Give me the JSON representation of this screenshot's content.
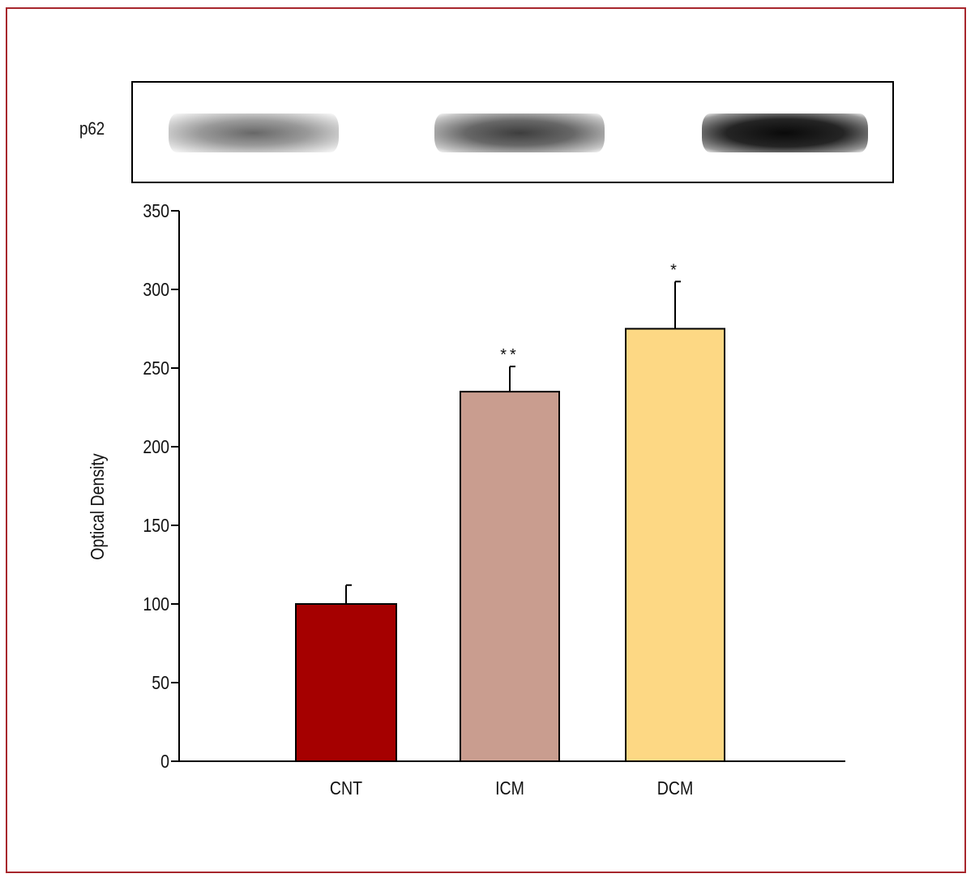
{
  "blot": {
    "label": "p62",
    "bands": [
      {
        "lane": "CNT"
      },
      {
        "lane": "ICM"
      },
      {
        "lane": "DCM"
      }
    ]
  },
  "chart_data": {
    "type": "bar",
    "ylabel": "Optical Density",
    "xlabel": "",
    "ylim": [
      0,
      350
    ],
    "yticks": [
      0,
      50,
      100,
      150,
      200,
      250,
      300,
      350
    ],
    "categories": [
      "CNT",
      "ICM",
      "DCM"
    ],
    "values": [
      100,
      235,
      275
    ],
    "errors": [
      12,
      16,
      30
    ],
    "annotations": [
      "",
      "**",
      "*"
    ],
    "colors": [
      "#a50000",
      "#c99d8f",
      "#fdd884"
    ]
  }
}
